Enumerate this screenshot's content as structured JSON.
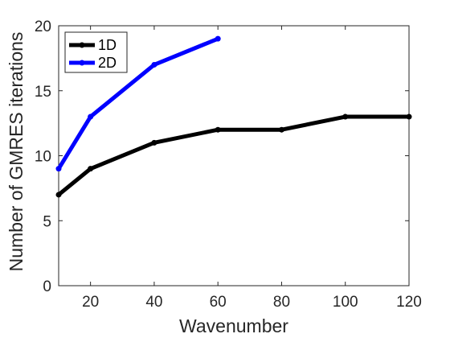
{
  "chart_data": {
    "type": "line",
    "xlabel": "Wavenumber",
    "ylabel": "Number of GMRES iterations",
    "xlim": [
      10,
      120
    ],
    "ylim": [
      0,
      20
    ],
    "xticks": [
      20,
      40,
      60,
      80,
      100,
      120
    ],
    "yticks": [
      0,
      5,
      10,
      15,
      20
    ],
    "grid": false,
    "legend_position": "top-left",
    "series": [
      {
        "name": "1D",
        "color": "#000000",
        "x": [
          10,
          20,
          40,
          60,
          80,
          100,
          120
        ],
        "y": [
          7,
          9,
          11,
          12,
          12,
          13,
          13
        ]
      },
      {
        "name": "2D",
        "color": "#0000ff",
        "x": [
          10,
          20,
          40,
          60
        ],
        "y": [
          9,
          13,
          17,
          19
        ]
      }
    ]
  }
}
